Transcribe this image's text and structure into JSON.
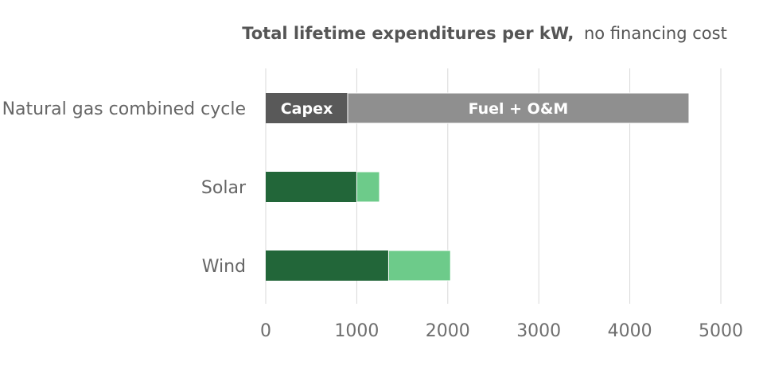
{
  "chart_data": {
    "type": "bar",
    "orientation": "horizontal",
    "stacked": true,
    "title_bold": "Total lifetime expenditures per kW,",
    "title_rest": "no financing cost",
    "categories": [
      "Natural gas combined cycle",
      "Solar",
      "Wind"
    ],
    "xlim": [
      0,
      5000
    ],
    "xticks": [
      "0",
      "1000",
      "2000",
      "3000",
      "4000",
      "5000"
    ],
    "grid": true,
    "legend": "none",
    "series": [
      {
        "name": "Capex",
        "values": [
          900,
          1000,
          1350
        ]
      },
      {
        "name": "Fuel + O&M",
        "values": [
          3750,
          250,
          680
        ]
      }
    ],
    "segment_labels": [
      [
        "Capex",
        "Fuel + O&M"
      ],
      [
        "",
        ""
      ],
      [
        "",
        ""
      ]
    ],
    "colors": [
      [
        "#595959",
        "#8f8f8f"
      ],
      [
        "#226639",
        "#6dcb8a"
      ],
      [
        "#226639",
        "#6dcb8a"
      ]
    ]
  }
}
